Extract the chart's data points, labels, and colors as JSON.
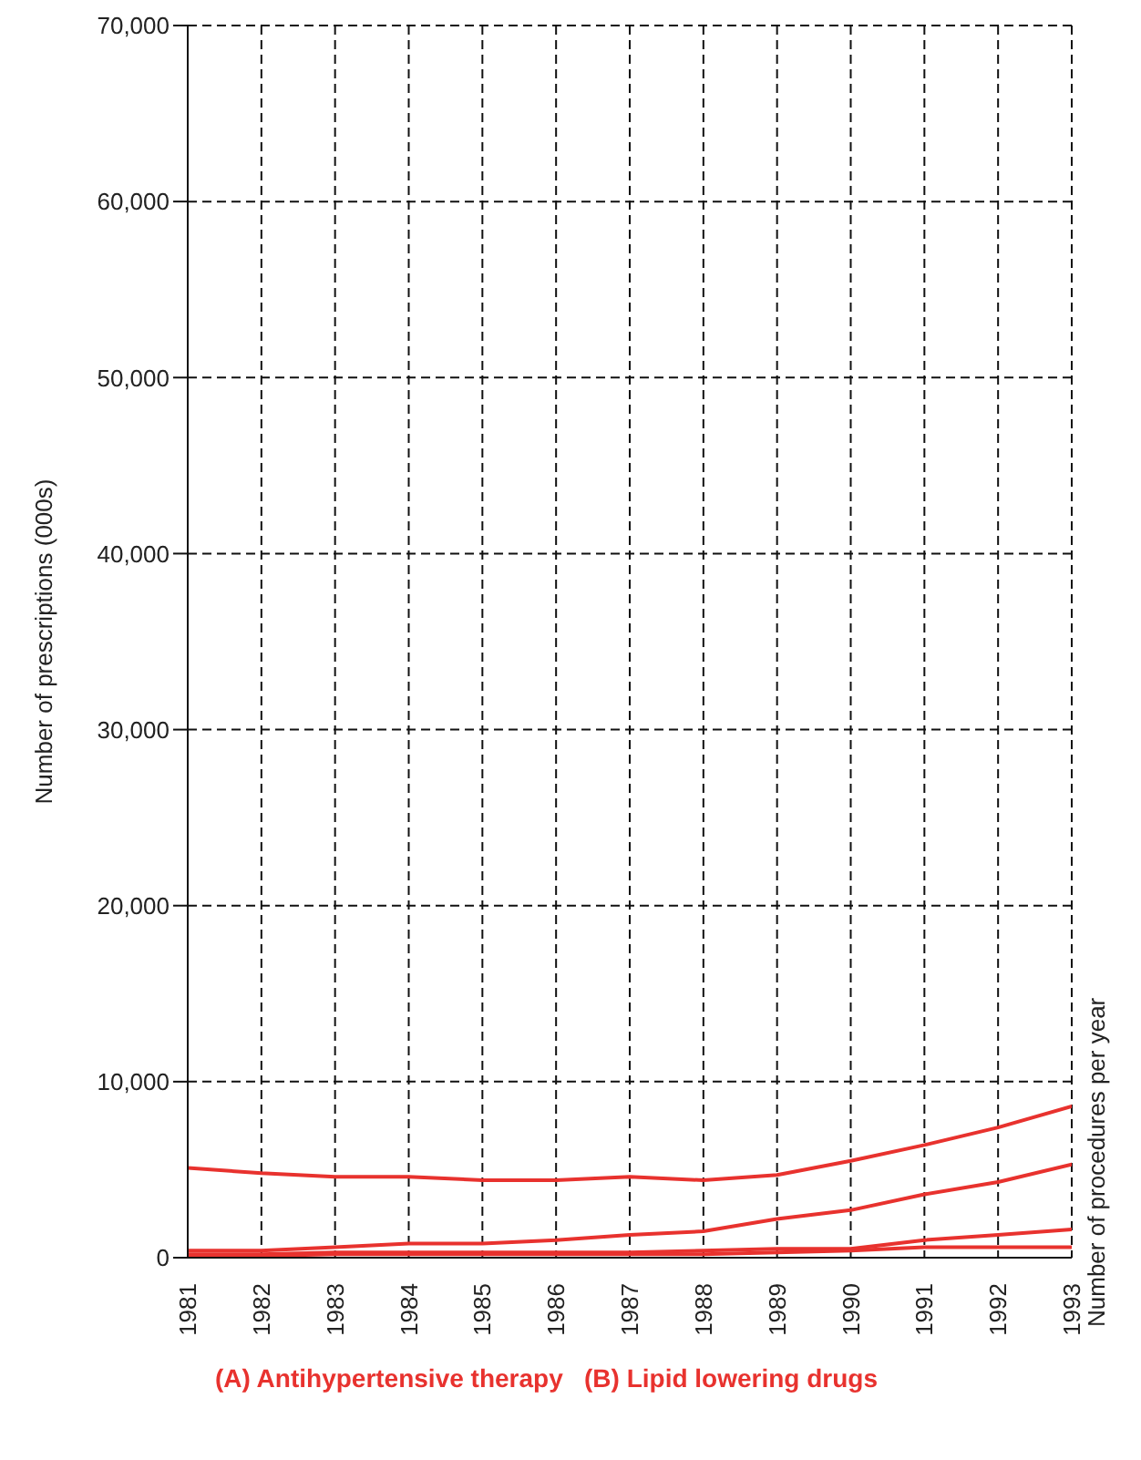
{
  "chart_data": {
    "type": "line",
    "ylabel": "Number of prescriptions (000s)",
    "y2label": "Number of procedures per year",
    "x": [
      1981,
      1982,
      1983,
      1984,
      1985,
      1986,
      1987,
      1988,
      1989,
      1990,
      1991,
      1992,
      1993
    ],
    "xlim": [
      1981,
      1993
    ],
    "xticks": [
      1981,
      1982,
      1983,
      1984,
      1985,
      1986,
      1987,
      1988,
      1989,
      1990,
      1991,
      1992,
      1993
    ],
    "ylim": [
      0,
      70000
    ],
    "yticks": [
      0,
      {
        "value": 10000,
        "label": "10,000"
      },
      {
        "value": 20000,
        "label": "20,000"
      },
      {
        "value": 30000,
        "label": "30,000"
      },
      {
        "value": 40000,
        "label": "40,000"
      },
      {
        "value": 50000,
        "label": "50,000"
      },
      {
        "value": 60000,
        "label": "60,000"
      },
      {
        "value": 70000,
        "label": "70,000"
      }
    ],
    "grid": true,
    "legend": false,
    "marker": "none",
    "line_style": "solid",
    "series": [
      {
        "color": "#e8322e",
        "values": [
          5100,
          4800,
          4600,
          4600,
          4400,
          4400,
          4600,
          4400,
          4700,
          5500,
          6400,
          7400,
          8600
        ]
      },
      {
        "color": "#e8322e",
        "values": [
          400,
          400,
          600,
          800,
          800,
          1000,
          1300,
          1500,
          2200,
          2700,
          3600,
          4300,
          5300
        ]
      },
      {
        "color": "#e8322e",
        "values": [
          200,
          200,
          300,
          300,
          300,
          300,
          300,
          400,
          500,
          500,
          1000,
          1300,
          1600
        ]
      },
      {
        "color": "#e8322e",
        "values": [
          100,
          100,
          200,
          200,
          200,
          200,
          200,
          200,
          300,
          400,
          600,
          600,
          600
        ]
      }
    ],
    "annotations": [
      "(A) Antihypertensive therapy   (B) Lipid lowering drugs"
    ]
  }
}
